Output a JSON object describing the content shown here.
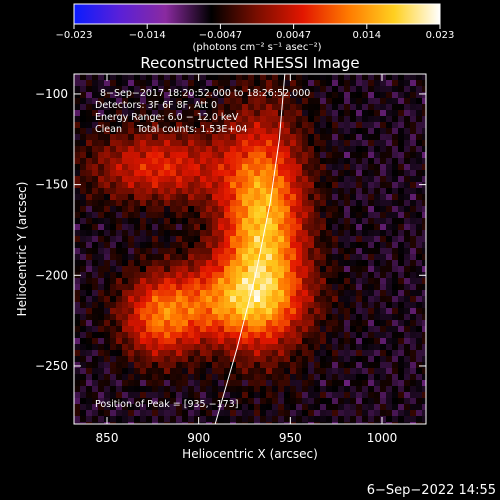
{
  "chart_data": {
    "type": "heatmap",
    "title": "Reconstructed RHESSI Image",
    "colorbar": {
      "ticks": [
        "−0.023",
        "−0.014",
        "−0.0047",
        "0.0047",
        "0.014",
        "0.023"
      ],
      "range": [
        -0.023,
        0.023
      ],
      "unit_label": "(photons cm⁻² s⁻¹ asec⁻²)",
      "colors": [
        "#0a1cff",
        "#5a20d8",
        "#8a2aa0",
        "#000000",
        "#7a0e00",
        "#e21600",
        "#ff7a00",
        "#ffd020",
        "#ffffff"
      ]
    },
    "annotations": [
      "8−Sep−2017 18:20:52.000 to 18:26:52.000",
      "Detectors: 3F 6F 8F, Att 0",
      "Energy Range: 6.0 − 12.0 keV",
      "Clean     Total counts: 1.53E+04"
    ],
    "peak_label": "Position of Peak = [935,−173]",
    "peak": [
      935,
      -173
    ],
    "xlabel": "Heliocentric X (arcsec)",
    "ylabel": "Heliocentric Y (arcsec)",
    "xlim": [
      832,
      1024
    ],
    "ylim": [
      -282,
      -89
    ],
    "xticks": [
      "850",
      "900",
      "950",
      "1000"
    ],
    "xtick_values": [
      850,
      900,
      950,
      1000
    ],
    "yticks": [
      "−100",
      "−150",
      "−200",
      "−250"
    ],
    "ytick_values": [
      -100,
      -150,
      -200,
      -250
    ],
    "limb": [
      [
        909,
        -282
      ],
      [
        921,
        -240
      ],
      [
        931,
        -200
      ],
      [
        939,
        -160
      ],
      [
        944,
        -125
      ],
      [
        947,
        -89
      ]
    ],
    "sources": [
      {
        "x": 935,
        "y": -173,
        "sx": 16,
        "sy": 40,
        "amp": 1.0
      },
      {
        "x": 915,
        "y": -215,
        "sx": 28,
        "sy": 16,
        "amp": 0.65
      },
      {
        "x": 878,
        "y": -225,
        "sx": 14,
        "sy": 16,
        "amp": 0.55
      },
      {
        "x": 878,
        "y": -140,
        "sx": 26,
        "sy": 14,
        "amp": 0.55
      }
    ]
  },
  "footer_date": "6−Sep−2022 14:55"
}
